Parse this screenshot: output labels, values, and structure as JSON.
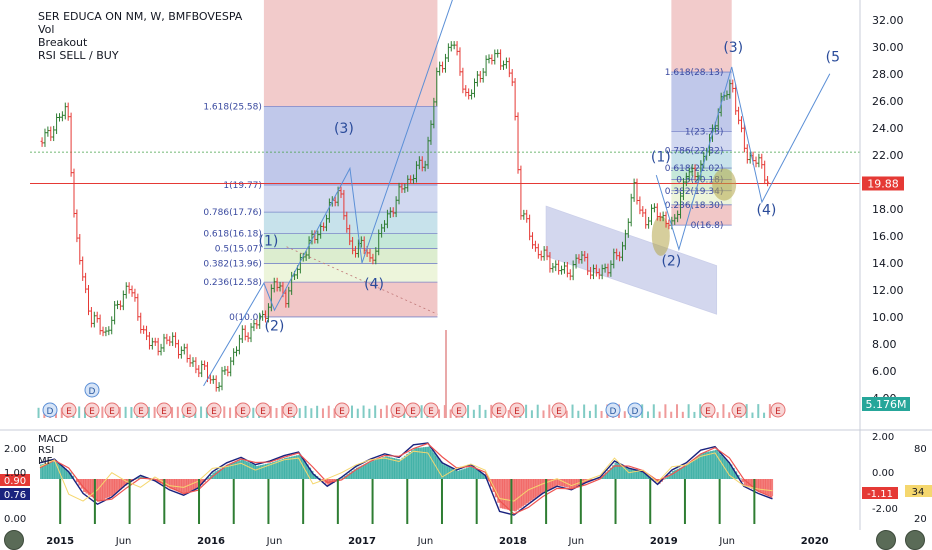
{
  "legend": {
    "symbol": "SER EDUCA ON NM, W, BMFBOVESPA",
    "lines": [
      "Vol",
      "Breakout",
      "RSI SELL / BUY"
    ]
  },
  "indicator_legend": [
    "MACD",
    "RSI",
    "MF"
  ],
  "colors": {
    "up": "#2e7d32",
    "down": "#e53935",
    "price_line": "#e53935",
    "wave": "#5b8fd6",
    "fib_upper": "#6d7fd0",
    "fib_lower": "#e89a9a",
    "channel": "#9fa8da",
    "macd_hist_pos": "#26a69a",
    "macd_hist_neg": "#ef5350",
    "macd_line": "#1a237e",
    "signal_line": "#ef5350",
    "rsi_line": "#f5d76e"
  },
  "chart_data": {
    "type": "line",
    "title": "SER EDUCA ON NM, W, BMFBOVESPA",
    "price_axis": {
      "min": 4.0,
      "max": 32.0,
      "ticks": [
        "32.00",
        "30.00",
        "28.00",
        "26.00",
        "24.00",
        "22.00",
        "18.00",
        "16.00",
        "14.00",
        "12.00",
        "10.00",
        "8.00",
        "6.00",
        "4.00"
      ],
      "current_price": "19.88",
      "volume_value": "5.176M"
    },
    "time_axis": {
      "ticks": [
        "2015",
        "Jun",
        "2016",
        "Jun",
        "2017",
        "Jun",
        "2018",
        "Jun",
        "2019",
        "Jun",
        "2020"
      ],
      "tick_decimal_years": [
        2015.0,
        2015.42,
        2016.0,
        2016.42,
        2017.0,
        2017.42,
        2018.0,
        2018.42,
        2019.0,
        2019.42,
        2020.0
      ]
    },
    "series": [
      {
        "x": [
          2014.88,
          2015.05,
          2015.1,
          2015.2,
          2015.3,
          2015.45,
          2015.55,
          2015.6,
          2015.75,
          2015.85,
          2015.95,
          2016.05,
          2016.2,
          2016.35,
          2016.42,
          2016.5,
          2016.6,
          2016.75,
          2016.85,
          2016.92,
          2017.0,
          2017.05,
          2017.15,
          2017.25,
          2017.35,
          2017.42,
          2017.5,
          2017.6,
          2017.7,
          2017.8,
          2017.9,
          2018.0,
          2018.05,
          2018.15,
          2018.25,
          2018.35,
          2018.45,
          2018.55,
          2018.65,
          2018.72,
          2018.8,
          2018.88,
          2018.95,
          2019.05,
          2019.15,
          2019.25,
          2019.35,
          2019.45,
          2019.5,
          2019.55,
          2019.62,
          2019.7
        ],
        "values": [
          23.0,
          25.5,
          16.0,
          10.0,
          8.8,
          12.5,
          9.0,
          7.8,
          8.3,
          6.8,
          6.0,
          4.9,
          8.5,
          10.0,
          12.5,
          11.5,
          14.5,
          17.0,
          19.7,
          15.0,
          15.5,
          14.0,
          17.0,
          19.2,
          20.8,
          21.5,
          28.0,
          30.5,
          26.0,
          28.5,
          29.5,
          27.5,
          18.0,
          15.0,
          14.0,
          13.2,
          14.5,
          13.0,
          14.0,
          14.8,
          19.5,
          17.0,
          18.0,
          16.5,
          20.5,
          21.0,
          25.0,
          27.5,
          24.0,
          22.0,
          21.5,
          20.0
        ]
      }
    ],
    "annotations": {
      "waves": [
        "(1)",
        "(2)",
        "(3)",
        "(4)",
        "(1)",
        "(2)",
        "(3)",
        "(4)",
        "(5"
      ],
      "fib_left": [
        "1.618(25.58)",
        "1(19.77)",
        "0.786(17.76)",
        "0.618(16.18)",
        "0.5(15.07)",
        "0.382(13.96)",
        "0.236(12.58)",
        "0(10.0)"
      ],
      "fib_right": [
        "1.618(28.13)",
        "1(23.73)",
        "0.786(22.32)",
        "0.618(21.02)",
        "0.5(20.18)",
        "0.382(19.34)",
        "0.236(18.30)",
        "0(16.8)"
      ],
      "event_markers": [
        "D",
        "D",
        "E",
        "E",
        "E",
        "E",
        "E",
        "E",
        "E",
        "E",
        "E",
        "E",
        "E",
        "E",
        "E",
        "E",
        "E",
        "E",
        "E",
        "E",
        "D",
        "D",
        "E",
        "E",
        "E"
      ]
    },
    "indicator": {
      "left_ticks": [
        "2.00",
        "1.00",
        "0.00"
      ],
      "right_ticks_macd": [
        "2.00",
        "0.00",
        "-2.00"
      ],
      "right_ticks_rsi": [
        "80",
        "20"
      ],
      "readouts": {
        "mf_left": "0.90",
        "macd_left": "0.76",
        "macd_right": "-1.11",
        "rsi_right": "34"
      },
      "macd": [
        0.9,
        1.1,
        0.4,
        -0.8,
        -1.4,
        -1.0,
        -0.3,
        0.2,
        -0.1,
        -0.6,
        -0.9,
        -0.5,
        0.4,
        0.9,
        1.2,
        0.8,
        1.0,
        1.3,
        1.5,
        0.3,
        -0.4,
        0.1,
        0.7,
        1.1,
        1.4,
        1.2,
        1.9,
        2.0,
        0.9,
        0.5,
        0.8,
        0.2,
        -1.8,
        -2.0,
        -1.4,
        -0.8,
        -0.4,
        -0.6,
        -0.2,
        0.1,
        1.0,
        0.6,
        0.4,
        -0.3,
        0.5,
        0.9,
        1.6,
        1.8,
        0.9,
        -0.4,
        -0.8,
        -1.1
      ],
      "rsi": [
        62,
        70,
        30,
        22,
        35,
        55,
        45,
        38,
        50,
        40,
        38,
        45,
        60,
        62,
        66,
        58,
        64,
        70,
        72,
        42,
        48,
        55,
        64,
        70,
        72,
        68,
        80,
        78,
        50,
        60,
        65,
        58,
        25,
        22,
        35,
        42,
        48,
        40,
        46,
        52,
        72,
        55,
        58,
        44,
        62,
        64,
        74,
        78,
        52,
        40,
        36,
        34
      ]
    }
  }
}
